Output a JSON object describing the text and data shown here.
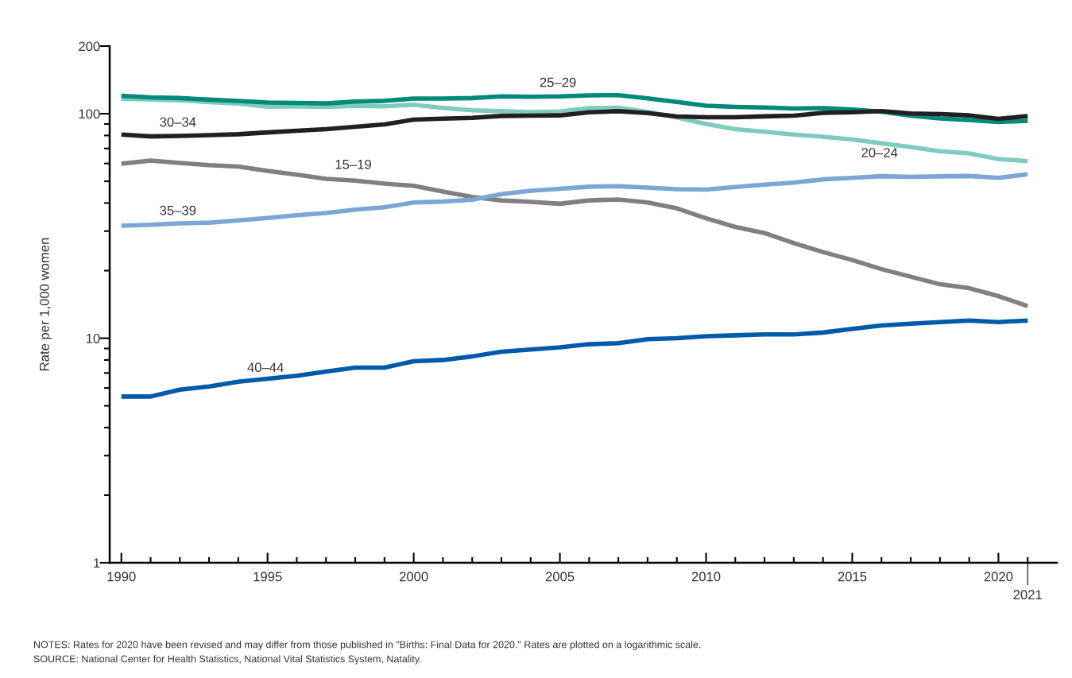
{
  "chart_data": {
    "type": "line",
    "ylabel": "Rate per 1,000 women",
    "log": "y",
    "grid": false,
    "legend": false,
    "marker": "none",
    "line_style": "solid",
    "x": [
      1990,
      1991,
      1992,
      1993,
      1994,
      1995,
      1996,
      1997,
      1998,
      1999,
      2000,
      2001,
      2002,
      2003,
      2004,
      2005,
      2006,
      2007,
      2008,
      2009,
      2010,
      2011,
      2012,
      2013,
      2014,
      2015,
      2016,
      2017,
      2018,
      2019,
      2020,
      2021
    ],
    "xlim": [
      1989.6,
      2022
    ],
    "xticks": [
      1990,
      {
        "value": 1991,
        "label": null
      },
      {
        "value": 1992,
        "label": null
      },
      {
        "value": 1993,
        "label": null
      },
      {
        "value": 1994,
        "label": null
      },
      1995,
      {
        "value": 1996,
        "label": null
      },
      {
        "value": 1997,
        "label": null
      },
      {
        "value": 1998,
        "label": null
      },
      {
        "value": 1999,
        "label": null
      },
      2000,
      {
        "value": 2001,
        "label": null
      },
      {
        "value": 2002,
        "label": null
      },
      {
        "value": 2003,
        "label": null
      },
      {
        "value": 2004,
        "label": null
      },
      2005,
      {
        "value": 2006,
        "label": null
      },
      {
        "value": 2007,
        "label": null
      },
      {
        "value": 2008,
        "label": null
      },
      {
        "value": 2009,
        "label": null
      },
      2010,
      {
        "value": 2011,
        "label": null
      },
      {
        "value": 2012,
        "label": null
      },
      {
        "value": 2013,
        "label": null
      },
      {
        "value": 2014,
        "label": null
      },
      2015,
      {
        "value": 2016,
        "label": null
      },
      {
        "value": 2017,
        "label": null
      },
      {
        "value": 2018,
        "label": null
      },
      {
        "value": 2019,
        "label": null
      },
      2020,
      {
        "value": 2021,
        "label": null
      }
    ],
    "ylim": [
      1,
      200
    ],
    "yticks": [
      1,
      {
        "value": 2,
        "label": null
      },
      {
        "value": 3,
        "label": null
      },
      {
        "value": 4,
        "label": null
      },
      {
        "value": 5,
        "label": null
      },
      {
        "value": 6,
        "label": null
      },
      {
        "value": 7,
        "label": null
      },
      {
        "value": 8,
        "label": null
      },
      {
        "value": 9,
        "label": null
      },
      10,
      {
        "value": 20,
        "label": null
      },
      {
        "value": 30,
        "label": null
      },
      {
        "value": 40,
        "label": null
      },
      {
        "value": 50,
        "label": null
      },
      {
        "value": 60,
        "label": null
      },
      {
        "value": 70,
        "label": null
      },
      {
        "value": 80,
        "label": null
      },
      {
        "value": 90,
        "label": null
      },
      100,
      200
    ],
    "series": [
      {
        "name": "15–19",
        "color": "#808080",
        "values": [
          59.9,
          61.8,
          60.3,
          59.0,
          58.2,
          55.6,
          53.5,
          51.3,
          50.3,
          48.8,
          47.7,
          45.0,
          42.6,
          41.1,
          40.5,
          39.7,
          41.1,
          41.5,
          40.2,
          37.9,
          34.2,
          31.3,
          29.4,
          26.5,
          24.2,
          22.3,
          20.3,
          18.8,
          17.4,
          16.7,
          15.4,
          13.9
        ]
      },
      {
        "name": "20–24",
        "color": "#7fcbbf",
        "values": [
          116.5,
          115.7,
          114.6,
          112.6,
          111.1,
          107.5,
          107.8,
          107.3,
          108.4,
          107.9,
          109.7,
          106.2,
          103.6,
          102.6,
          101.7,
          102.2,
          105.9,
          106.3,
          101.8,
          96.2,
          90.0,
          85.3,
          83.1,
          80.7,
          79.0,
          76.8,
          73.8,
          71.0,
          68.0,
          66.6,
          62.8,
          61.5
        ]
      },
      {
        "name": "25–29",
        "color": "#008a7a",
        "values": [
          120.2,
          118.2,
          117.4,
          115.5,
          113.9,
          112.2,
          111.7,
          111.1,
          113.2,
          114.1,
          116.7,
          116.7,
          117.4,
          119.5,
          119.0,
          119.4,
          120.7,
          120.9,
          117.0,
          112.9,
          108.6,
          107.2,
          106.5,
          105.5,
          105.8,
          104.3,
          102.1,
          98.0,
          95.3,
          93.7,
          91.9,
          93.0
        ]
      },
      {
        "name": "30–34",
        "color": "#231f20",
        "values": [
          80.8,
          79.2,
          79.6,
          80.3,
          81.0,
          82.5,
          83.9,
          85.3,
          87.4,
          89.6,
          94.1,
          95.1,
          95.8,
          97.7,
          98.0,
          98.3,
          101.4,
          102.6,
          100.6,
          97.2,
          96.5,
          96.5,
          97.3,
          98.0,
          100.8,
          101.5,
          102.7,
          100.3,
          99.7,
          98.3,
          94.9,
          97.6
        ]
      },
      {
        "name": "35–39",
        "color": "#7ba7d6",
        "values": [
          31.7,
          32.0,
          32.5,
          32.7,
          33.5,
          34.3,
          35.3,
          36.1,
          37.4,
          38.3,
          40.2,
          40.6,
          41.4,
          43.8,
          45.4,
          46.3,
          47.3,
          47.5,
          46.9,
          46.1,
          45.9,
          47.2,
          48.3,
          49.3,
          51.0,
          51.8,
          52.7,
          52.3,
          52.6,
          52.8,
          51.8,
          53.7
        ]
      },
      {
        "name": "40–44",
        "color": "#005aaa",
        "values": [
          5.5,
          5.5,
          5.9,
          6.1,
          6.4,
          6.6,
          6.8,
          7.1,
          7.4,
          7.4,
          7.9,
          8.0,
          8.3,
          8.7,
          8.9,
          9.1,
          9.4,
          9.5,
          9.9,
          10.0,
          10.2,
          10.3,
          10.4,
          10.4,
          10.6,
          11.0,
          11.4,
          11.6,
          11.8,
          12.0,
          11.8,
          12.0
        ]
      }
    ],
    "annotations": [
      {
        "text": "2021",
        "x": 2021
      },
      "NOTES: Rates for 2020 have been revised and may differ from those published in \"Births: Final Data for 2020.\" Rates are plotted on a logarithmic scale.",
      "SOURCE: National Center for Health Statistics, National Vital Statistics System, Natality."
    ]
  }
}
